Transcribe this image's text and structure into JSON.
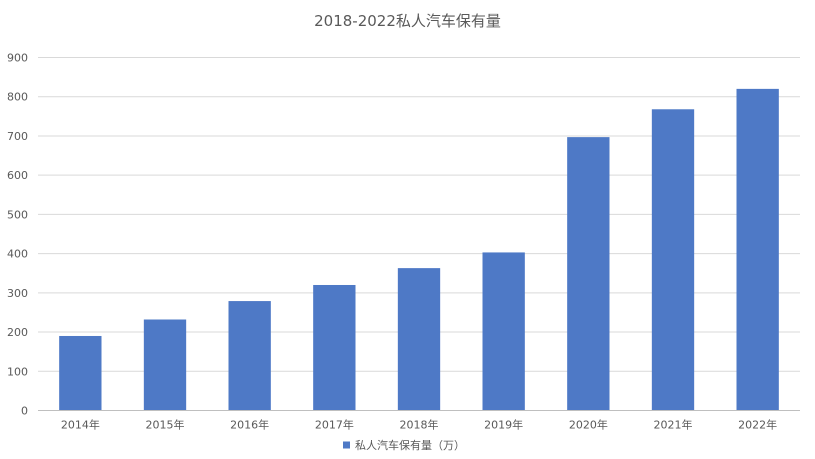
{
  "chart_data": {
    "type": "bar",
    "title": "2018-2022私人汽车保有量",
    "categories": [
      "2014年",
      "2015年",
      "2016年",
      "2017年",
      "2018年",
      "2019年",
      "2020年",
      "2021年",
      "2022年"
    ],
    "series": [
      {
        "name": "私人汽车保有量（万）",
        "values": [
          190,
          232,
          279,
          320,
          363,
          403,
          697,
          768,
          820
        ],
        "color": "#4e79c6"
      }
    ],
    "ylim": [
      0,
      900
    ],
    "yticks": [
      0,
      100,
      200,
      300,
      400,
      500,
      600,
      700,
      800,
      900
    ],
    "grid": true,
    "legend_position": "bottom"
  }
}
